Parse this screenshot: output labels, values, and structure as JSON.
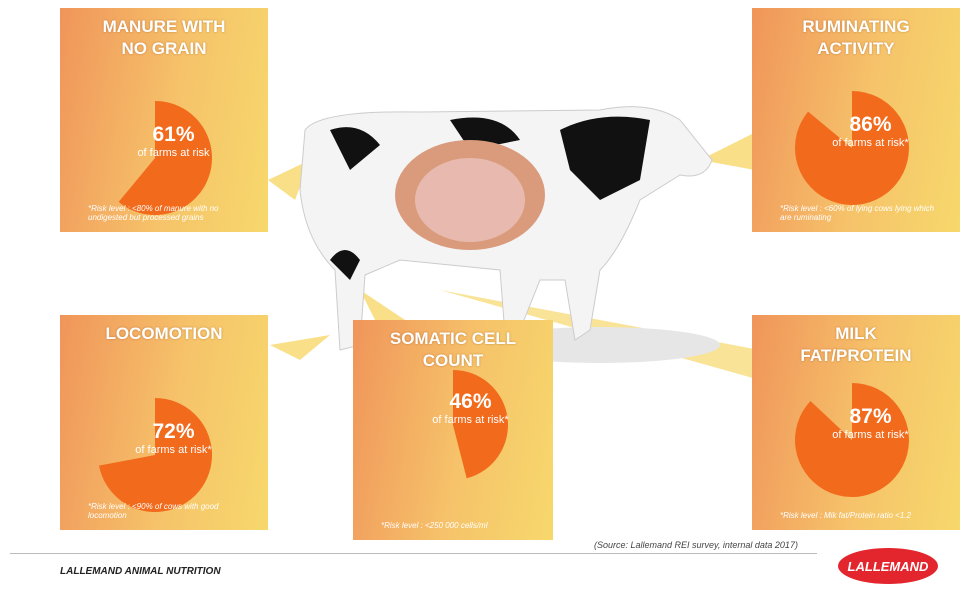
{
  "chart_data": [
    {
      "type": "pie",
      "title": "MANURE WITH NO GRAIN",
      "values": [
        61
      ],
      "value_labels": [
        "61%"
      ],
      "caption": "of farms at risk",
      "note": "*Risk level : <80% of manure with no undigested but processed grains",
      "color": "#f26a1b"
    },
    {
      "type": "pie",
      "title": "RUMINATING ACTIVITY",
      "values": [
        86
      ],
      "value_labels": [
        "86%"
      ],
      "caption": "of farms at risk*",
      "note": "*Risk level : <60% of lying cows lying which are ruminating",
      "color": "#f26a1b"
    },
    {
      "type": "pie",
      "title": "LOCOMOTION",
      "values": [
        72
      ],
      "value_labels": [
        "72%"
      ],
      "caption": "of farms at risk*",
      "note": "*Risk level : <90% of cows with good locomotion",
      "color": "#f26a1b"
    },
    {
      "type": "pie",
      "title": "SOMATIC CELL COUNT",
      "values": [
        46
      ],
      "value_labels": [
        "46%"
      ],
      "caption": "of farms at risk*",
      "note": "*Risk level : <250 000 cells/ml",
      "color": "#f26a1b"
    },
    {
      "type": "pie",
      "title": "MILK FAT/PROTEIN",
      "values": [
        87
      ],
      "value_labels": [
        "87%"
      ],
      "caption": "of farms at risk*",
      "note": "*Risk level : Mik fat/Protein ratio <1.2",
      "color": "#f26a1b"
    }
  ],
  "source": "(Source: Lallemand REI survey, internal data 2017)",
  "footer": "LALLEMAND ANIMAL NUTRITION",
  "logo": "LALLEMAND"
}
